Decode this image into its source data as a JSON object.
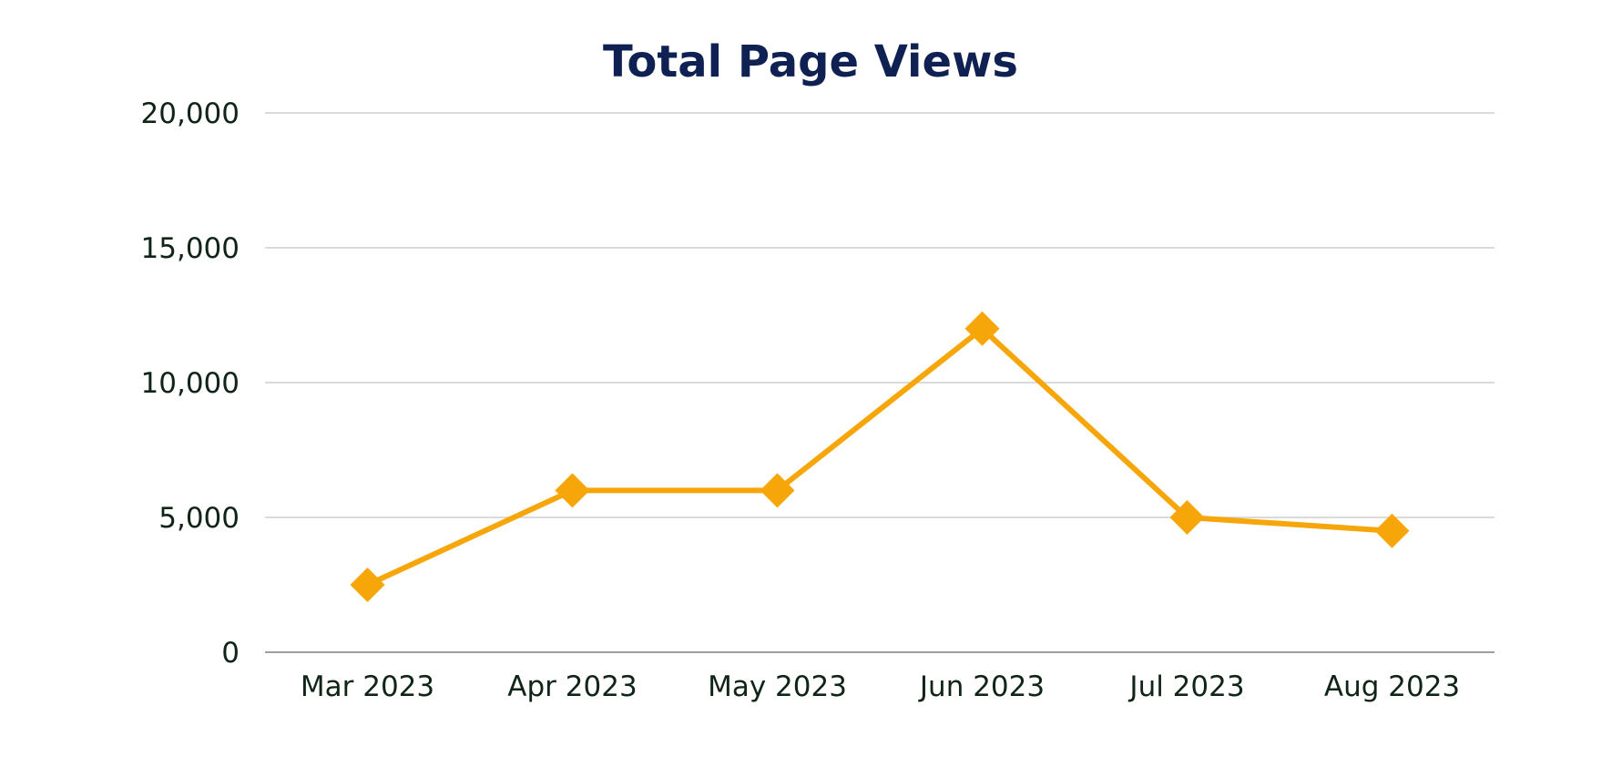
{
  "chart_data": {
    "type": "line",
    "title": "Total Page Views",
    "xlabel": "",
    "ylabel": "",
    "categories": [
      "Mar 2023",
      "Apr 2023",
      "May 2023",
      "Jun 2023",
      "Jul 2023",
      "Aug 2023"
    ],
    "series": [
      {
        "values": [
          2500,
          6000,
          6000,
          12000,
          5000,
          4500
        ],
        "color": "#f6a609",
        "marker": "diamond"
      }
    ],
    "ylim": [
      0,
      20000
    ],
    "yticks": [
      0,
      5000,
      10000,
      15000,
      20000
    ],
    "ytick_labels": [
      "0",
      "5,000",
      "10,000",
      "15,000",
      "20,000"
    ],
    "grid": true,
    "legend": "none"
  }
}
